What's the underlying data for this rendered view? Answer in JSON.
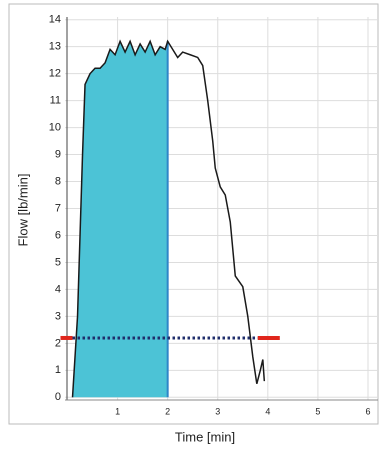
{
  "chart_data": {
    "type": "area-line",
    "xlabel": "Time [min]",
    "ylabel": "Flow [lb/min]",
    "x": [
      0.1,
      0.2,
      0.3,
      0.35,
      0.45,
      0.55,
      0.65,
      0.75,
      0.85,
      0.95,
      1.05,
      1.15,
      1.25,
      1.35,
      1.45,
      1.55,
      1.65,
      1.75,
      1.85,
      1.95,
      2.0,
      2.1,
      2.2,
      2.3,
      2.45,
      2.6,
      2.7,
      2.8,
      2.9,
      2.95,
      3.05,
      3.15,
      3.25,
      3.35,
      3.5,
      3.6,
      3.7,
      3.78,
      3.85,
      3.9,
      3.93
    ],
    "values": [
      0,
      3,
      9,
      11.6,
      12,
      12.2,
      12.2,
      12.4,
      12.9,
      12.7,
      13.2,
      12.8,
      13.2,
      12.7,
      13.1,
      12.8,
      13.2,
      12.7,
      13,
      12.9,
      13.2,
      12.9,
      12.6,
      12.8,
      12.7,
      12.6,
      12.3,
      11,
      9.5,
      8.5,
      7.8,
      7.5,
      6.5,
      4.5,
      4.1,
      3,
      1.5,
      0.5,
      1,
      1.4,
      0.6
    ],
    "color": "#1a1a1a",
    "fill_color": "#4cc3d6",
    "shade_end": 2.0,
    "threshold": 2.2,
    "threshold_range": [
      0.1,
      3.8
    ],
    "threshold_color": "#1f2d6b",
    "limit_color": "#e0261c",
    "xlim": [
      -0.05,
      6.2
    ],
    "ylim": [
      -0.1,
      14.1
    ],
    "xticks": [
      1,
      2,
      3,
      4,
      5,
      6
    ],
    "yticks": [
      0,
      1,
      2,
      3,
      4,
      5,
      6,
      7,
      8,
      9,
      10,
      11,
      12,
      13,
      14
    ],
    "grid": true
  }
}
